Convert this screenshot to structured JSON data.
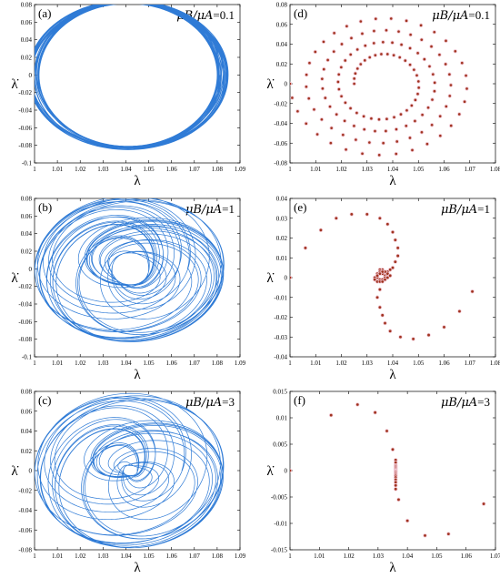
{
  "chart_data": [
    {
      "panel": "(a)",
      "type": "line",
      "ratio_label": {
        "lhs": "μB/μA",
        "value": "=0.1"
      },
      "xlabel": "λ",
      "ylabel": "λ̇",
      "xlim": [
        1.0,
        1.09
      ],
      "ylim": [
        -0.1,
        0.08
      ],
      "xticks": [
        "1",
        "1.01",
        "1.02",
        "1.03",
        "1.04",
        "1.05",
        "1.06",
        "1.07",
        "1.08",
        "1.09"
      ],
      "yticks": [
        "0.08",
        "0.06",
        "0.04",
        "0.02",
        "0",
        "-0.02",
        "-0.04",
        "-0.06",
        "-0.08",
        "-0.1"
      ],
      "color": "#2f7bd6",
      "series": [
        {
          "cx": 1.041,
          "cy": 0.0,
          "rx_min": 0.039,
          "rx_max": 0.044,
          "ry_min": 0.081,
          "ry_max": 0.085,
          "loops": 40
        }
      ]
    },
    {
      "panel": "(b)",
      "type": "line",
      "ratio_label": {
        "lhs": "μB/μA",
        "value": "=1"
      },
      "xlabel": "λ",
      "ylabel": "λ̇",
      "xlim": [
        1.0,
        1.09
      ],
      "ylim": [
        -0.1,
        0.08
      ],
      "xticks": [
        "1",
        "1.01",
        "1.02",
        "1.03",
        "1.04",
        "1.05",
        "1.06",
        "1.07",
        "1.08",
        "1.09"
      ],
      "yticks": [
        "0.08",
        "0.06",
        "0.04",
        "0.02",
        "0",
        "-0.02",
        "-0.04",
        "-0.06",
        "-0.08",
        "-0.1"
      ],
      "color": "#2f7bd6",
      "series": [
        {
          "cx": 1.042,
          "cy": 0.0,
          "rx_min": 0.008,
          "rx_max": 0.042,
          "ry_min": 0.018,
          "ry_max": 0.083,
          "loops": 38
        }
      ]
    },
    {
      "panel": "(c)",
      "type": "line",
      "ratio_label": {
        "lhs": "μB/μA",
        "value": "=3"
      },
      "xlabel": "λ",
      "ylabel": "λ̇",
      "xlim": [
        1.0,
        1.09
      ],
      "ylim": [
        -0.08,
        0.08
      ],
      "xticks": [
        "1",
        "1.01",
        "1.02",
        "1.03",
        "1.04",
        "1.05",
        "1.06",
        "1.07",
        "1.08",
        "1.09"
      ],
      "yticks": [
        "0.08",
        "0.06",
        "0.04",
        "0.02",
        "0",
        "-0.02",
        "-0.04",
        "-0.06",
        "-0.08"
      ],
      "color": "#2f7bd6",
      "series": [
        {
          "cx": 1.042,
          "cy": 0.0,
          "rx_min": 0.003,
          "rx_max": 0.042,
          "ry_min": 0.005,
          "ry_max": 0.078,
          "loops": 32
        }
      ]
    },
    {
      "panel": "(d)",
      "type": "scatter",
      "ratio_label": {
        "lhs": "μB/μA",
        "value": "=0.1"
      },
      "xlabel": "λ",
      "ylabel": "λ̇",
      "xlim": [
        1.0,
        1.08
      ],
      "ylim": [
        -0.08,
        0.08
      ],
      "xticks": [
        "1",
        "1.01",
        "1.02",
        "1.03",
        "1.04",
        "1.05",
        "1.06",
        "1.07",
        "1.08"
      ],
      "yticks": [
        "0.08",
        "0.06",
        "0.04",
        "0.02",
        "0",
        "-0.02",
        "-0.04",
        "-0.06",
        "-0.08"
      ],
      "color": "#a0341f",
      "spiral": {
        "cx": 1.036,
        "cy": 0.0,
        "rx_out": 0.036,
        "ry_out": 0.075,
        "rx_in": 0.011,
        "ry_in": 0.027,
        "turns": 4,
        "points": 132
      }
    },
    {
      "panel": "(e)",
      "type": "scatter",
      "ratio_label": {
        "lhs": "μB/μA",
        "value": "=1"
      },
      "xlabel": "λ",
      "ylabel": "λ̇",
      "xlim": [
        1.0,
        1.08
      ],
      "ylim": [
        -0.04,
        0.04
      ],
      "xticks": [
        "1",
        "1.01",
        "1.02",
        "1.03",
        "1.04",
        "1.05",
        "1.06",
        "1.07",
        "1.08"
      ],
      "yticks": [
        "0.04",
        "0.03",
        "0.02",
        "0.01",
        "0",
        "-0.01",
        "-0.02",
        "-0.03",
        "-0.04"
      ],
      "color": "#a0341f",
      "x": [
        1.0,
        1.006,
        1.012,
        1.018,
        1.024,
        1.03,
        1.035,
        1.038,
        1.04,
        1.041,
        1.042,
        1.042,
        1.041,
        1.04,
        1.039,
        1.038,
        1.037,
        1.036,
        1.036,
        1.035,
        1.035,
        1.034,
        1.034,
        1.034,
        1.035,
        1.036,
        1.037,
        1.037,
        1.036,
        1.035,
        1.034,
        1.034,
        1.035,
        1.036,
        1.037,
        1.038,
        1.038,
        1.037,
        1.036,
        1.035,
        1.034,
        1.033,
        1.033,
        1.034,
        1.035,
        1.036,
        1.037,
        1.038,
        1.039,
        1.035,
        1.034,
        1.035,
        1.036,
        1.037,
        1.039,
        1.043,
        1.048,
        1.054,
        1.06,
        1.066,
        1.071
      ],
      "y": [
        0.0,
        0.015,
        0.024,
        0.03,
        0.032,
        0.032,
        0.03,
        0.027,
        0.023,
        0.019,
        0.015,
        0.011,
        0.008,
        0.005,
        0.004,
        0.003,
        0.002,
        0.003,
        0.004,
        0.004,
        0.003,
        0.002,
        0.001,
        0.0,
        -0.001,
        -0.001,
        0.0,
        0.001,
        0.002,
        0.002,
        0.001,
        0.0,
        -0.001,
        -0.001,
        0.0,
        0.001,
        0.002,
        0.003,
        0.003,
        0.002,
        0.001,
        0.0,
        -0.001,
        -0.002,
        -0.002,
        -0.002,
        -0.001,
        0.0,
        0.001,
        -0.006,
        -0.01,
        -0.015,
        -0.019,
        -0.023,
        -0.027,
        -0.03,
        -0.031,
        -0.029,
        -0.025,
        -0.017,
        -0.007
      ]
    },
    {
      "panel": "(f)",
      "type": "scatter",
      "ratio_label": {
        "lhs": "μB/μA",
        "value": "=3"
      },
      "xlabel": "λ",
      "ylabel": "λ̇",
      "xlim": [
        1.0,
        1.07
      ],
      "ylim": [
        -0.015,
        0.015
      ],
      "xticks": [
        "1",
        "1.01",
        "1.02",
        "1.03",
        "1.04",
        "1.05",
        "1.06",
        "1.07"
      ],
      "yticks": [
        "0.015",
        "0.01",
        "0.005",
        "0",
        "-0.005",
        "-0.01",
        "-0.015"
      ],
      "color": "#a0341f",
      "x": [
        1.0,
        1.014,
        1.023,
        1.029,
        1.033,
        1.035,
        1.036,
        1.036,
        1.036,
        1.036,
        1.036,
        1.036,
        1.036,
        1.036,
        1.036,
        1.036,
        1.036,
        1.036,
        1.036,
        1.036,
        1.036,
        1.036,
        1.036,
        1.036,
        1.036,
        1.037,
        1.04,
        1.046,
        1.054,
        1.066
      ],
      "y": [
        0.0,
        0.0105,
        0.0125,
        0.011,
        0.0075,
        0.004,
        0.002,
        0.0015,
        0.001,
        0.0008,
        0.0006,
        0.0004,
        0.0002,
        0.0,
        -0.0001,
        -0.0002,
        -0.0004,
        -0.0006,
        -0.0008,
        -0.001,
        -0.0013,
        -0.0017,
        -0.0022,
        -0.0028,
        -0.0035,
        -0.0055,
        -0.0095,
        -0.0123,
        -0.012,
        -0.0063
      ]
    }
  ]
}
